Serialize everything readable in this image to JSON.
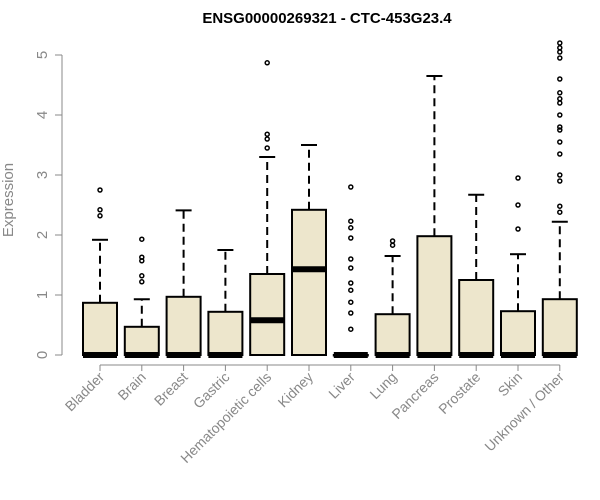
{
  "chart_data": {
    "type": "box",
    "title": "ENSG00000269321 - CTC-453G23.4",
    "xlabel": "",
    "ylabel": "Expression",
    "ylim": [
      0,
      5.2
    ],
    "yticks": [
      0,
      1,
      2,
      3,
      4,
      5
    ],
    "box_fill": "#ede6cc",
    "categories": [
      "Bladder",
      "Brain",
      "Breast",
      "Gastric",
      "Hematopoietic cells",
      "Kidney",
      "Liver",
      "Lung",
      "Pancreas",
      "Prostate",
      "Skin",
      "Unknown / Other"
    ],
    "boxes": [
      {
        "q1": 0,
        "median": 0,
        "q3": 0.87,
        "whisker_low": 0,
        "whisker_high": 1.92,
        "outliers": [
          2.32,
          2.42,
          2.75
        ]
      },
      {
        "q1": 0,
        "median": 0,
        "q3": 0.47,
        "whisker_low": 0,
        "whisker_high": 0.93,
        "outliers": [
          1.22,
          1.32,
          1.57,
          1.63,
          1.93
        ]
      },
      {
        "q1": 0,
        "median": 0,
        "q3": 0.97,
        "whisker_low": 0,
        "whisker_high": 2.41,
        "outliers": []
      },
      {
        "q1": 0,
        "median": 0,
        "q3": 0.72,
        "whisker_low": 0,
        "whisker_high": 1.75,
        "outliers": []
      },
      {
        "q1": 0,
        "median": 0.58,
        "q3": 1.35,
        "whisker_low": 0,
        "whisker_high": 3.3,
        "outliers": [
          3.45,
          3.6,
          3.68,
          4.87
        ]
      },
      {
        "q1": 0,
        "median": 1.43,
        "q3": 2.42,
        "whisker_low": 0,
        "whisker_high": 3.5,
        "outliers": []
      },
      {
        "q1": 0,
        "median": 0,
        "q3": 0,
        "whisker_low": 0,
        "whisker_high": 0,
        "outliers": [
          0.43,
          0.7,
          0.88,
          1.08,
          1.2,
          1.45,
          1.6,
          1.95,
          2.12,
          2.23,
          2.8
        ]
      },
      {
        "q1": 0,
        "median": 0,
        "q3": 0.68,
        "whisker_low": 0,
        "whisker_high": 1.65,
        "outliers": [
          1.83,
          1.9
        ]
      },
      {
        "q1": 0,
        "median": 0,
        "q3": 1.98,
        "whisker_low": 0,
        "whisker_high": 4.65,
        "outliers": []
      },
      {
        "q1": 0,
        "median": 0,
        "q3": 1.25,
        "whisker_low": 0,
        "whisker_high": 2.67,
        "outliers": []
      },
      {
        "q1": 0,
        "median": 0,
        "q3": 0.73,
        "whisker_low": 0,
        "whisker_high": 1.68,
        "outliers": [
          2.1,
          2.5,
          2.95
        ]
      },
      {
        "q1": 0,
        "median": 0,
        "q3": 0.93,
        "whisker_low": 0,
        "whisker_high": 2.22,
        "outliers": [
          2.38,
          2.48,
          2.9,
          3.0,
          3.35,
          3.55,
          3.75,
          3.8,
          4.0,
          4.2,
          4.27,
          4.37,
          4.6,
          4.95,
          5.05,
          5.12,
          5.2
        ]
      }
    ]
  }
}
